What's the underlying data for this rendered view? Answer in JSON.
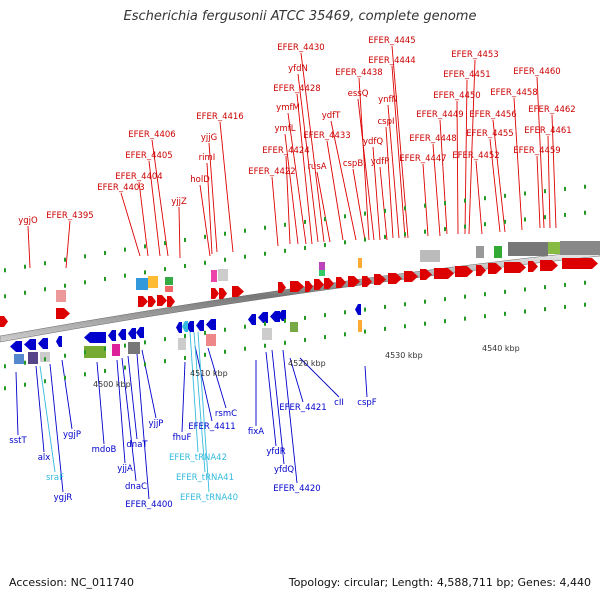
{
  "title": "Escherichia fergusonii ATCC 35469, complete genome",
  "footer": {
    "accession_label": "Accession: NC_011740",
    "summary_label": "Topology: circular; Length: 4,588,711 bp; Genes: 4,440"
  },
  "axis_labels": [
    "4500 kbp",
    "4510 kbp",
    "4520 kbp",
    "4530 kbp",
    "4540 kbp"
  ],
  "top_gene_labels": [
    "ygjO",
    "EFER_4395",
    "EFER_4403",
    "EFER_4404",
    "EFER_4405",
    "EFER_4406",
    "yjjZ",
    "holD",
    "rimI",
    "yjjG",
    "EFER_4416",
    "EFER_4422",
    "EFER_4424",
    "ymfL",
    "ymfM",
    "EFER_4428",
    "yfdN",
    "EFER_4430",
    "rusA",
    "EFER_4433",
    "ydfT",
    "cspB",
    "EFER_4438",
    "essQ",
    "ydfQ",
    "ydfP",
    "cspI",
    "ynfN",
    "EFER_4444",
    "EFER_4445",
    "EFER_4447",
    "EFER_4448",
    "EFER_4449",
    "EFER_4450",
    "EFER_4451",
    "EFER_4453",
    "EFER_4452",
    "EFER_4455",
    "EFER_4456",
    "EFER_4458",
    "EFER_4459",
    "EFER_4460",
    "EFER_4461",
    "EFER_4462"
  ],
  "bottom_gene_labels": [
    "sstT",
    "alx",
    "sraF",
    "ygjR",
    "ygjP",
    "mdoB",
    "yjjA",
    "dnaC",
    "dnaT",
    "EFER_4400",
    "yjjP",
    "fhuF",
    "EFER_4411",
    "rsmC",
    "EFER_tRNA42",
    "EFER_tRNA41",
    "EFER_tRNA40",
    "fixA",
    "yfdR",
    "yfdQ",
    "EFER_4421",
    "EFER_4420",
    "cII",
    "cspF"
  ],
  "colors": {
    "forward_strand": "#dd0000",
    "reverse_strand": "#0000cc",
    "rna": "#33bbdd",
    "backbone": "#888888",
    "tick": "#229922"
  }
}
